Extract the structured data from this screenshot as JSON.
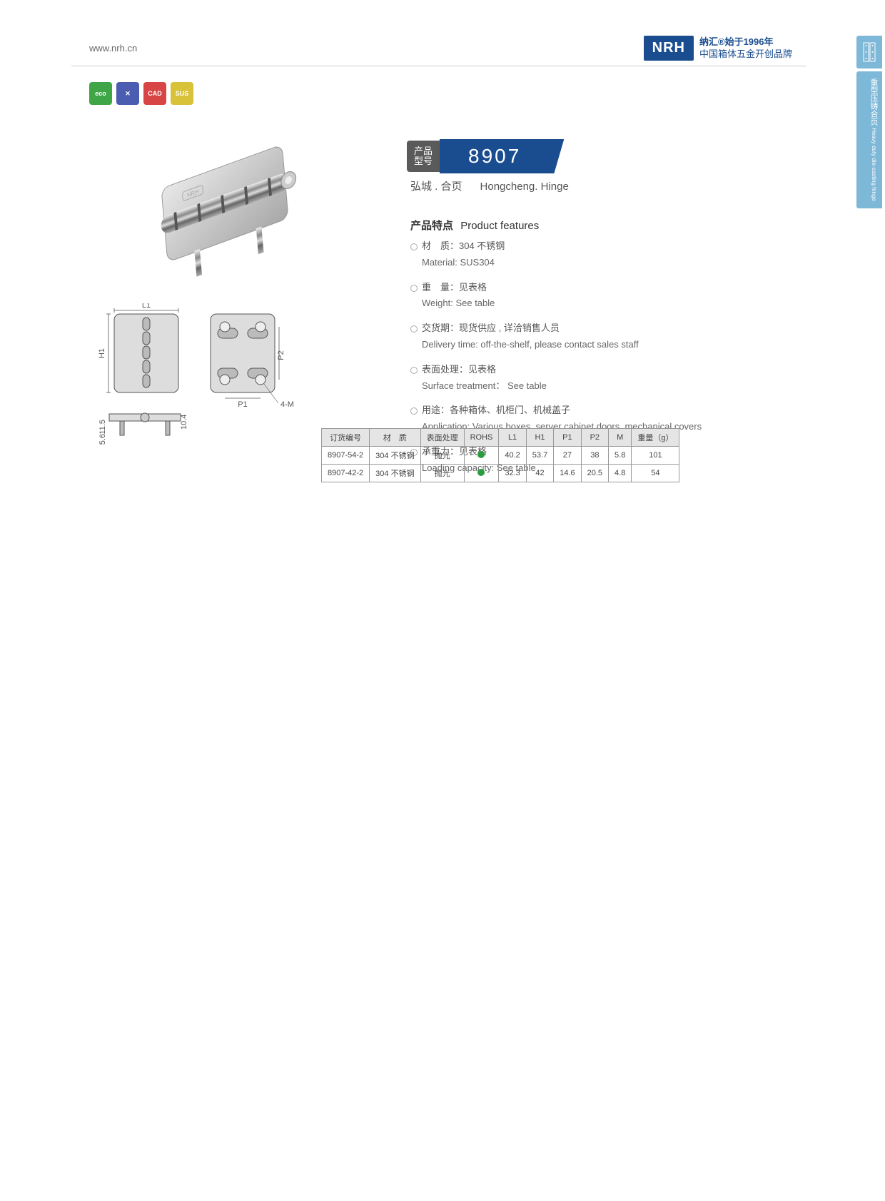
{
  "header": {
    "url": "www.nrh.cn",
    "logo_text": "NRH",
    "brand_line1": "纳汇®始于1996年",
    "brand_line2": "中国箱体五金开创品牌"
  },
  "side_tabs": {
    "tab1_cn": "重型压铸合页",
    "tab1_en": "Heavy duty die-casting hinge"
  },
  "badges": [
    {
      "color": "#3fa648",
      "label": "eco"
    },
    {
      "color": "#4a5db0",
      "label": "✕"
    },
    {
      "color": "#d84545",
      "label": "CAD"
    },
    {
      "color": "#d8c23a",
      "label": "SUS"
    }
  ],
  "model": {
    "label": "产品\n型号",
    "number": "8907",
    "subtitle_cn": "弘城 . 合页",
    "subtitle_en": "Hongcheng. Hinge"
  },
  "features": {
    "title_cn": "产品特点",
    "title_en": "Product features",
    "items": [
      {
        "cn": "材　质：304 不锈钢",
        "en": "Material: SUS304"
      },
      {
        "cn": "重　量：见表格",
        "en": "Weight: See table"
      },
      {
        "cn": "交货期：现货供应 , 详洽销售人员",
        "en": "Delivery time: off-the-shelf, please contact sales staff"
      },
      {
        "cn": "表面处理：见表格",
        "en": "Surface treatment： See table"
      },
      {
        "cn": "用途：各种箱体、机柜门、机械盖子",
        "en": "Application: Various boxes, server cabinet doors, mechanical covers"
      },
      {
        "cn": "承重力：见表格",
        "en": "Loading capacity: See table"
      }
    ]
  },
  "table": {
    "headers": [
      "订货编号",
      "材　质",
      "表面处理",
      "ROHS",
      "L1",
      "H1",
      "P1",
      "P2",
      "M",
      "重量（g）"
    ],
    "rows": [
      [
        "8907-54-2",
        "304 不锈钢",
        "抛光",
        "●",
        "40.2",
        "53.7",
        "27",
        "38",
        "5.8",
        "101"
      ],
      [
        "8907-42-2",
        "304 不锈钢",
        "抛光",
        "●",
        "32.3",
        "42",
        "14.6",
        "20.5",
        "4.8",
        "54"
      ]
    ]
  },
  "drawing": {
    "labels": {
      "L1": "L1",
      "H1": "H1",
      "P1": "P1",
      "P2": "P2",
      "M4": "4-M",
      "d115": "11.5",
      "d56": "5.6",
      "d104": "10.4"
    }
  }
}
